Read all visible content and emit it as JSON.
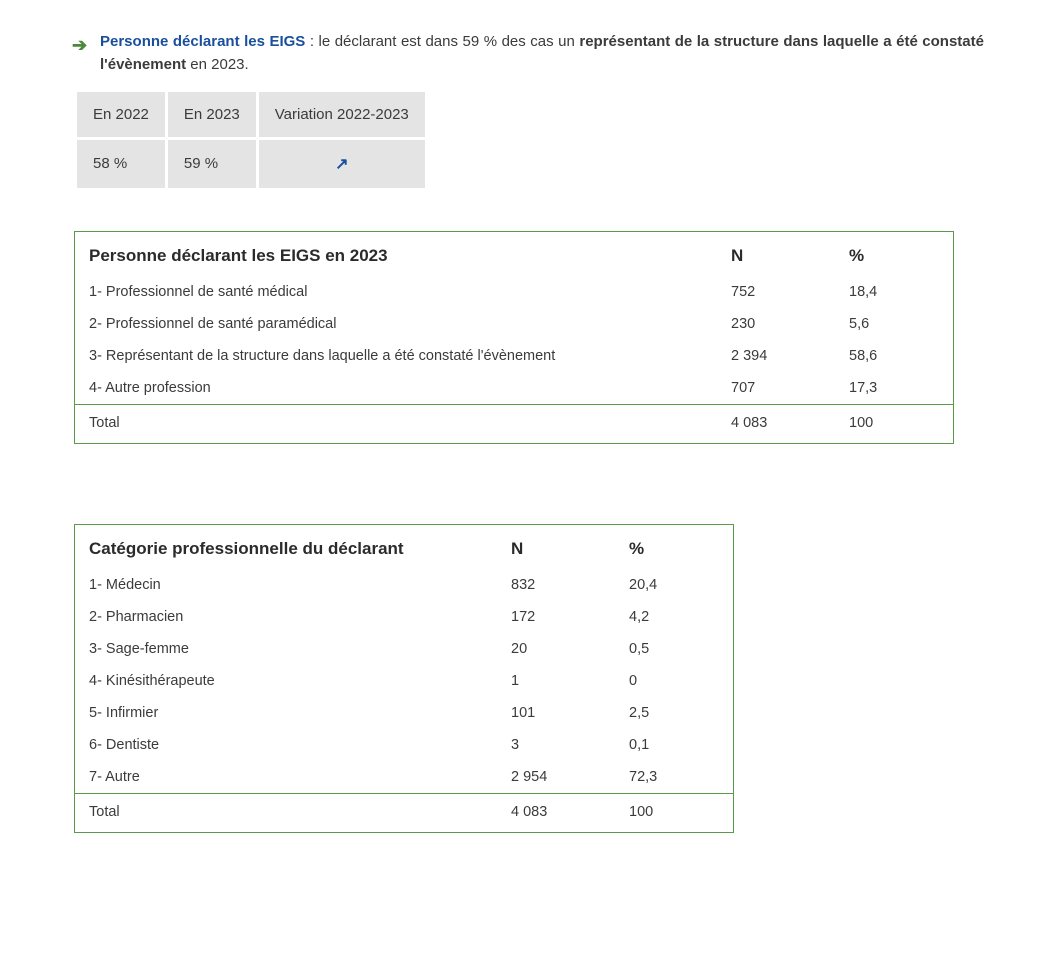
{
  "intro": {
    "title": "Personne déclarant les EIGS",
    "text_before": " : le déclarant est dans 59 % des cas un ",
    "bold_span": "représentant de la structure dans laquelle a été constaté l'évènement",
    "text_after": " en 2023."
  },
  "variation": {
    "headers": [
      "En 2022",
      "En 2023",
      "Variation 2022-2023"
    ],
    "values": [
      "58 %",
      "59 %"
    ],
    "trend_glyph": "↗"
  },
  "table1": {
    "title": "Personne déclarant les EIGS en 2023",
    "col_n": "N",
    "col_p": "%",
    "rows": [
      {
        "label": "1- Professionnel de santé médical",
        "n": "752",
        "p": "18,4"
      },
      {
        "label": "2- Professionnel de santé paramédical",
        "n": "230",
        "p": "5,6"
      },
      {
        "label": "3- Représentant de la structure dans laquelle a été constaté l'évènement",
        "n": "2 394",
        "p": "58,6"
      },
      {
        "label": "4- Autre profession",
        "n": "707",
        "p": "17,3"
      }
    ],
    "total": {
      "label": "Total",
      "n": "4 083",
      "p": "100"
    }
  },
  "table2": {
    "title": "Catégorie professionnelle du déclarant",
    "col_n": "N",
    "col_p": "%",
    "rows": [
      {
        "label": "1- Médecin",
        "n": "832",
        "p": "20,4"
      },
      {
        "label": "2- Pharmacien",
        "n": "172",
        "p": "4,2"
      },
      {
        "label": "3- Sage-femme",
        "n": "20",
        "p": "0,5"
      },
      {
        "label": "4- Kinésithérapeute",
        "n": "1",
        "p": "0"
      },
      {
        "label": "5- Infirmier",
        "n": "101",
        "p": "2,5"
      },
      {
        "label": "6- Dentiste",
        "n": "3",
        "p": "0,1"
      },
      {
        "label": "7- Autre",
        "n": "2 954",
        "p": "72,3"
      }
    ],
    "total": {
      "label": "Total",
      "n": "4 083",
      "p": "100"
    }
  },
  "colors": {
    "border_green": "#5a9a4a",
    "arrow_green": "#4a8a3a",
    "title_blue": "#1a4f9c",
    "cell_grey": "#e4e4e4",
    "text": "#3b3b3b"
  }
}
